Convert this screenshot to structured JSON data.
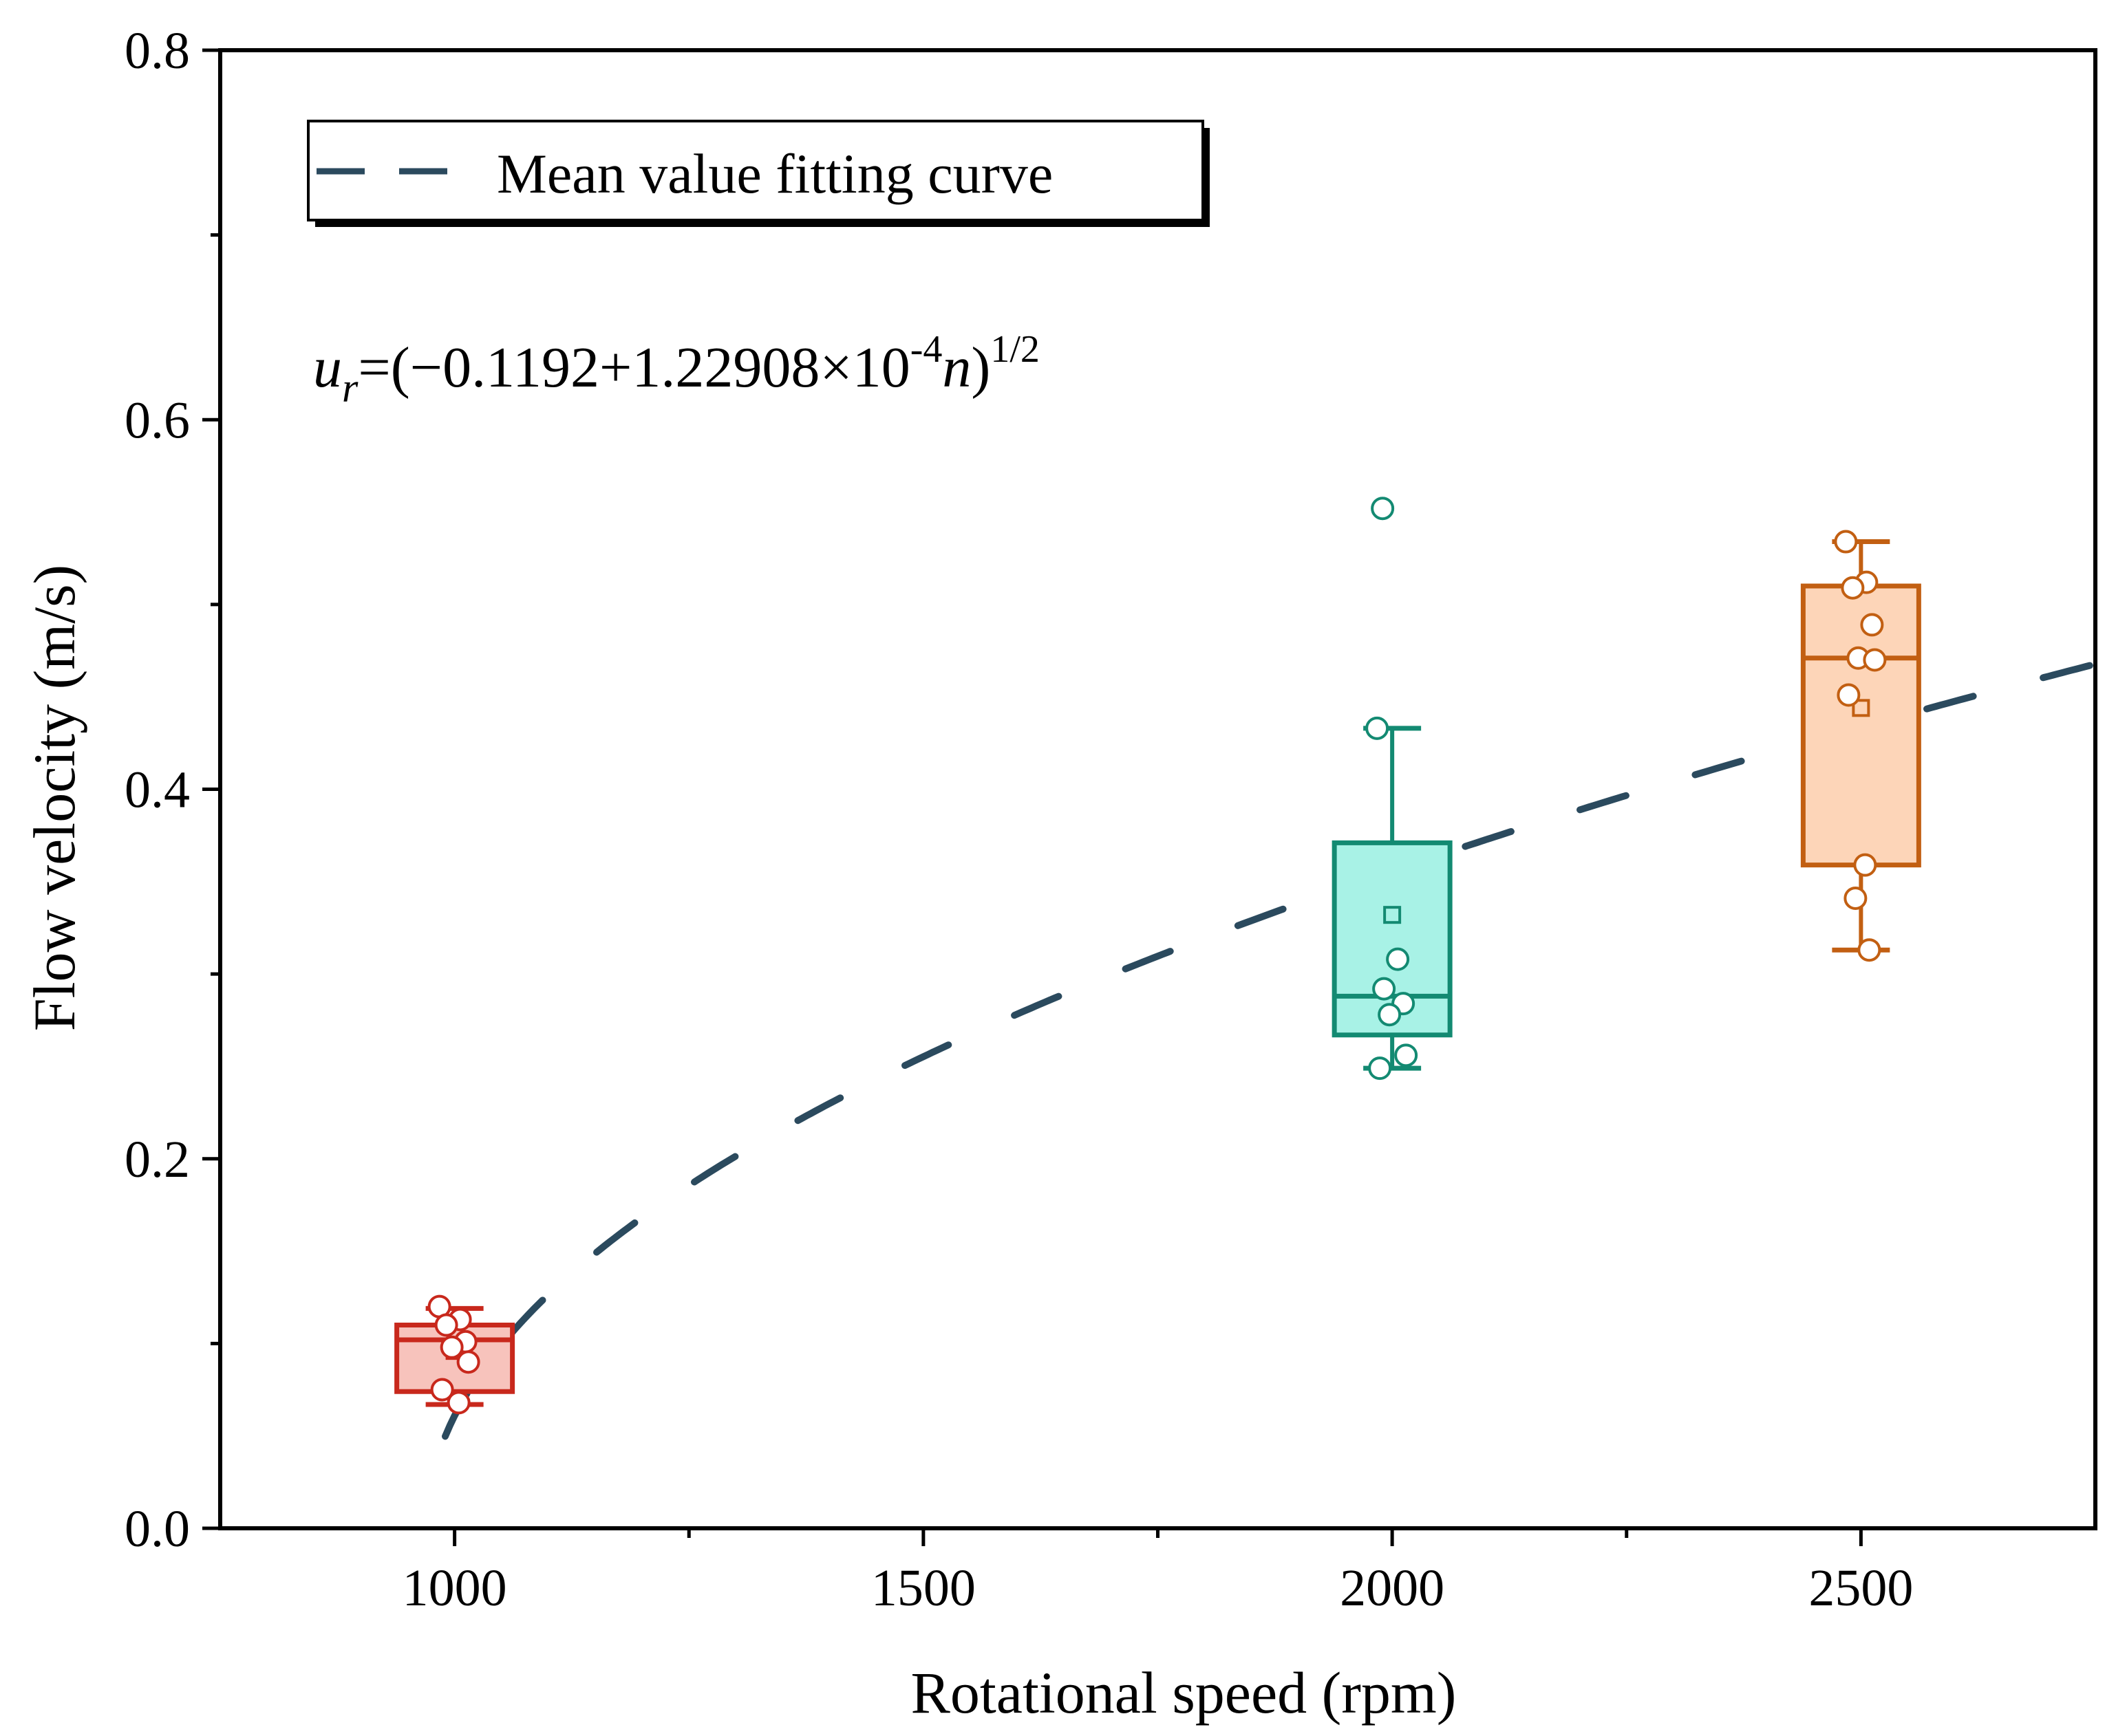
{
  "chart_data": {
    "type": "box",
    "xlabel": "Rotational speed (rpm)",
    "ylabel": "Flow velocity (m/s)",
    "xlim": [
      750,
      2750
    ],
    "ylim": [
      0.0,
      0.8
    ],
    "xticks": [
      1000,
      1500,
      2000,
      2500
    ],
    "xtick_labels": [
      "1000",
      "1500",
      "2000",
      "2500"
    ],
    "yticks": [
      0.0,
      0.2,
      0.4,
      0.6,
      0.8
    ],
    "ytick_labels": [
      "0.0",
      "0.2",
      "0.4",
      "0.6",
      "0.8"
    ],
    "legend": {
      "position": "top-left",
      "entries": [
        {
          "label": "Mean value fitting curve",
          "style": "dashed",
          "color": "#2b4a5e"
        }
      ]
    },
    "annotation": {
      "u": "u",
      "sub": "r",
      "body": "=(−0.1192+1.22908×10",
      "exp1": "-4",
      "n": "n",
      "close": ")",
      "exp2": "1/2"
    },
    "fit_curve": {
      "a": -0.1192,
      "b": 0.000122908,
      "x_start": 990,
      "x_end": 2750,
      "color": "#2b4a5e"
    },
    "boxes": [
      {
        "name": "1000 rpm",
        "x": 1000,
        "whisker_low": 0.067,
        "q1": 0.074,
        "median": 0.102,
        "q3": 0.11,
        "whisker_high": 0.119,
        "mean": 0.096,
        "points": [
          0.12,
          0.113,
          0.11,
          0.101,
          0.098,
          0.09,
          0.075,
          0.068
        ],
        "outliers": [],
        "edge_color": "#c8281c",
        "fill_color": "#f7c3bc"
      },
      {
        "name": "2000 rpm",
        "x": 2000,
        "whisker_low": 0.249,
        "q1": 0.267,
        "median": 0.288,
        "q3": 0.371,
        "whisker_high": 0.433,
        "mean": 0.332,
        "points": [
          0.433,
          0.308,
          0.292,
          0.284,
          0.278,
          0.256,
          0.249
        ],
        "outliers": [
          0.552
        ],
        "edge_color": "#138a72",
        "fill_color": "#a8f2e6"
      },
      {
        "name": "2500 rpm",
        "x": 2500,
        "whisker_low": 0.313,
        "q1": 0.359,
        "median": 0.471,
        "q3": 0.51,
        "whisker_high": 0.534,
        "mean": 0.444,
        "points": [
          0.534,
          0.512,
          0.509,
          0.489,
          0.471,
          0.47,
          0.451,
          0.359,
          0.341,
          0.313
        ],
        "outliers": [],
        "edge_color": "#c25f12",
        "fill_color": "#fdd5b8"
      }
    ]
  }
}
